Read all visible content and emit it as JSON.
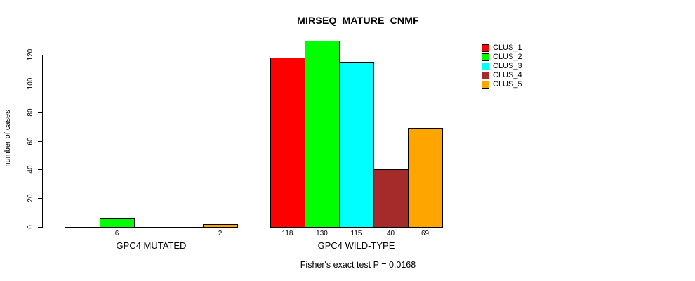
{
  "chart_data": {
    "type": "bar",
    "title": "MIRSEQ_MATURE_CNMF",
    "ylabel": "number of cases",
    "xlabel": "",
    "ylim": [
      0,
      130
    ],
    "y_ticks": [
      0,
      20,
      40,
      60,
      80,
      100,
      120
    ],
    "categories": [
      "GPC4 MUTATED",
      "GPC4 WILD-TYPE"
    ],
    "series": [
      {
        "name": "CLUS_1",
        "color": "#ff0000",
        "values": [
          0,
          118
        ]
      },
      {
        "name": "CLUS_2",
        "color": "#00ff00",
        "values": [
          6,
          130
        ]
      },
      {
        "name": "CLUS_3",
        "color": "#00ffff",
        "values": [
          0,
          115
        ]
      },
      {
        "name": "CLUS_4",
        "color": "#a52a2a",
        "values": [
          0,
          40
        ]
      },
      {
        "name": "CLUS_5",
        "color": "#ffa500",
        "values": [
          2,
          69
        ]
      }
    ],
    "bar_value_labels": {
      "GPC4 MUTATED": [
        "",
        "6",
        "",
        "",
        "2"
      ],
      "GPC4 WILD-TYPE": [
        "118",
        "130",
        "115",
        "40",
        "69"
      ]
    },
    "annotation": "Fisher's exact test P = 0.0168",
    "legend_position": "top-right",
    "grid": false,
    "axis_color": "#000000",
    "bar_border_color": "#000000",
    "background": "#ffffff"
  }
}
